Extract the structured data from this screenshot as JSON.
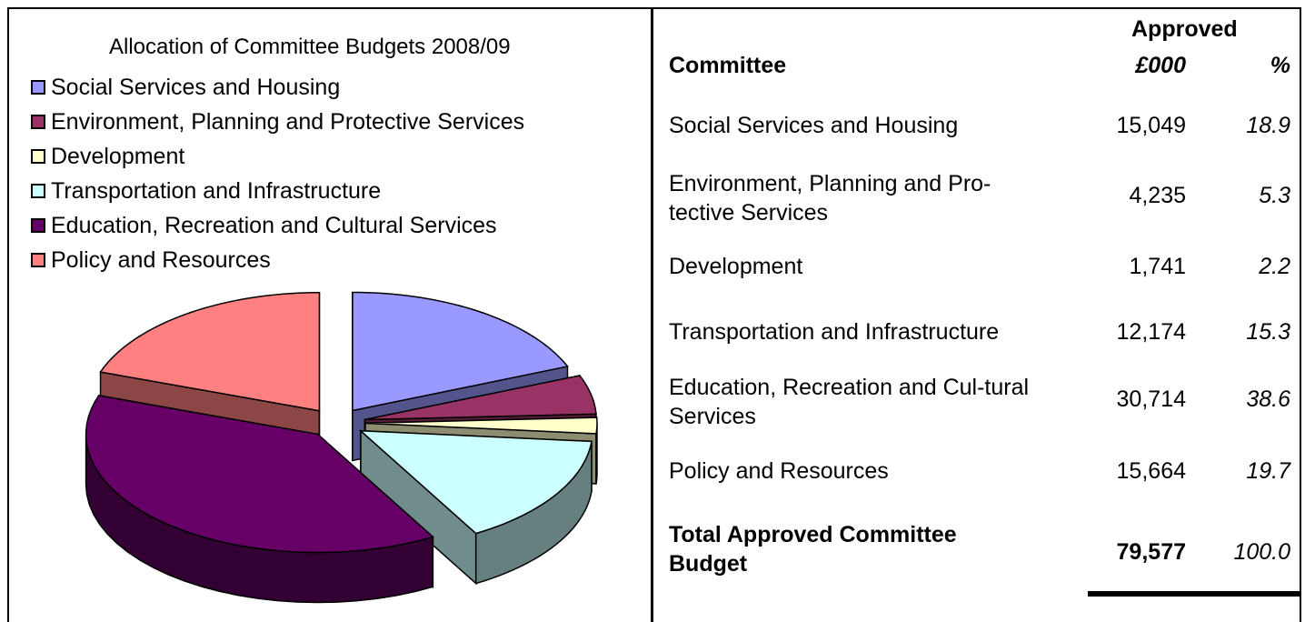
{
  "chart_data": {
    "type": "pie",
    "title": "Allocation of Committee Budgets 2008/09",
    "legend_position": "top-left",
    "three_d": true,
    "exploded": true,
    "categories": [
      "Social Services and Housing",
      "Environment, Planning and Protective Services",
      "Development",
      "Transportation and Infrastructure",
      "Education, Recreation and Cultural Services",
      "Policy and Resources"
    ],
    "values": [
      15049,
      4235,
      1741,
      12174,
      30714,
      15664
    ],
    "colors": [
      "#9999ff",
      "#993366",
      "#ffffcc",
      "#ccffff",
      "#660066",
      "#ff8080"
    ]
  },
  "table": {
    "header_group": "Approved",
    "header_committee": "Committee",
    "header_amount": "£000",
    "header_percent": "%",
    "rows": [
      {
        "name": "Social Services and Housing",
        "amount": "15,049",
        "percent": "18.9"
      },
      {
        "name": "Environment, Planning and Pro-tective Services",
        "amount": "4,235",
        "percent": "5.3"
      },
      {
        "name": "Development",
        "amount": "1,741",
        "percent": "2.2"
      },
      {
        "name": "Transportation and Infrastructure",
        "amount": "12,174",
        "percent": "15.3"
      },
      {
        "name": "Education, Recreation and Cul-tural Services",
        "amount": "30,714",
        "percent": "38.6"
      },
      {
        "name": "Policy and Resources",
        "amount": "15,664",
        "percent": "19.7"
      }
    ],
    "total": {
      "name": "Total Approved Committee Budget",
      "amount": "79,577",
      "percent": "100.0"
    }
  }
}
